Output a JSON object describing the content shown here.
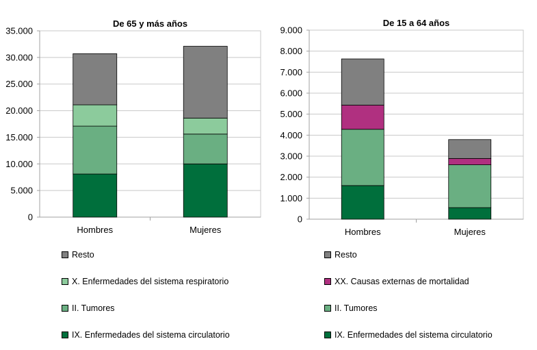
{
  "chart_data": [
    {
      "type": "bar",
      "stacked": true,
      "title": "De 65 y más años",
      "categories": [
        "Hombres",
        "Mujeres"
      ],
      "ylim": [
        0,
        35000
      ],
      "y_ticks": [
        "0",
        "5.000",
        "10.000",
        "15.000",
        "20.000",
        "25.000",
        "30.000",
        "35.000"
      ],
      "grid": true,
      "legend_position": "bottom",
      "series": [
        {
          "name": "IX. Enfermedades del sistema circulatorio",
          "color": "#006f3c",
          "values": [
            8100,
            10000
          ]
        },
        {
          "name": "II. Tumores",
          "color": "#6aaf82",
          "values": [
            9000,
            5600
          ]
        },
        {
          "name": "X. Enfermedades del sistema respiratorio",
          "color": "#8ccb9c",
          "values": [
            4000,
            3000
          ]
        },
        {
          "name": "Resto",
          "color": "#808080",
          "values": [
            9600,
            13500
          ]
        }
      ]
    },
    {
      "type": "bar",
      "stacked": true,
      "title": "De 15 a 64 años",
      "categories": [
        "Hombres",
        "Mujeres"
      ],
      "ylim": [
        0,
        9000
      ],
      "y_ticks": [
        "0",
        "1.000",
        "2.000",
        "3.000",
        "4.000",
        "5.000",
        "6.000",
        "7.000",
        "8.000",
        "9.000"
      ],
      "grid": true,
      "legend_position": "bottom",
      "series": [
        {
          "name": "IX. Enfermedades del sistema circulatorio",
          "color": "#006f3c",
          "values": [
            1600,
            550
          ]
        },
        {
          "name": "II. Tumores",
          "color": "#6aaf82",
          "values": [
            2680,
            2040
          ]
        },
        {
          "name": "XX. Causas externas de mortalidad",
          "color": "#b03080",
          "values": [
            1150,
            300
          ]
        },
        {
          "name": "Resto",
          "color": "#808080",
          "values": [
            2200,
            900
          ]
        }
      ]
    }
  ]
}
